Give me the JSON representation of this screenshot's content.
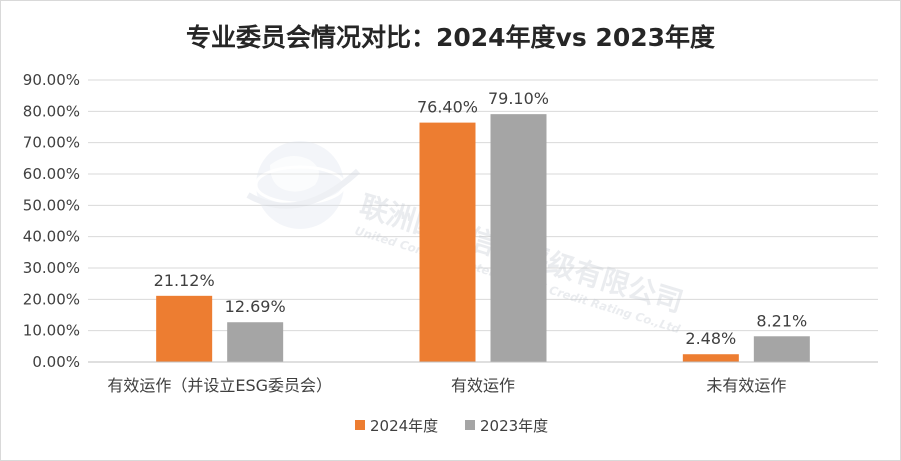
{
  "chart_data": {
    "type": "bar",
    "title": "专业委员会情况对比：2024年度vs 2023年度",
    "categories": [
      "有效运作（并设立ESG委员会）",
      "有效运作",
      "未有效运作"
    ],
    "series": [
      {
        "name": "2024年度",
        "values": [
          21.12,
          76.4,
          2.48
        ],
        "labels": [
          "21.12%",
          "76.40%",
          "2.48%"
        ]
      },
      {
        "name": "2023年度",
        "values": [
          12.69,
          79.1,
          8.21
        ],
        "labels": [
          "12.69%",
          "79.10%",
          "8.21%"
        ]
      }
    ],
    "ylim": [
      0,
      90
    ],
    "yticks": [
      0,
      10,
      20,
      30,
      40,
      50,
      60,
      70,
      80,
      90
    ],
    "ytick_labels": [
      "0.00%",
      "10.00%",
      "20.00%",
      "30.00%",
      "40.00%",
      "50.00%",
      "60.00%",
      "70.00%",
      "80.00%",
      "90.00%"
    ],
    "grid": true,
    "legend_position": "bottom",
    "colors": {
      "2024年度": "#ed7d31",
      "2023年度": "#a5a5a5",
      "grid": "#d9d9d9",
      "axis": "#bfbfbf",
      "text": "#404040"
    }
  },
  "watermark": {
    "name_cn": "联洲国际信用评级有限公司",
    "name_en": "United Continent International Credit Rating Co.,Ltd"
  }
}
